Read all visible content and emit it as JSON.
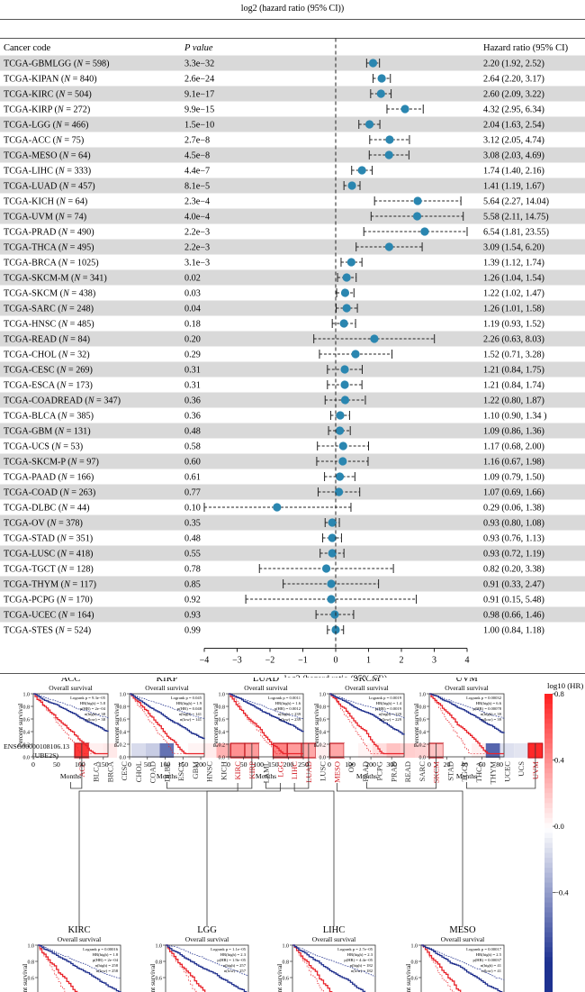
{
  "forest": {
    "top_axis_label": "log2 (hazard ratio (95% CI))",
    "xlabel": "log2 (hazard ratio (95% CI))",
    "headers": {
      "code": "Cancer code",
      "p": "P value",
      "hr": "Hazard ratio (95% CI)"
    },
    "xlim": [
      -4,
      4
    ],
    "ticks": [
      "−4",
      "−3",
      "−2",
      "−1",
      "0",
      "1",
      "2",
      "3",
      "4"
    ],
    "point_color": "#2a86b0",
    "band_color": "#d9d9d9"
  },
  "chart_data": {
    "type": "forest",
    "xlabel": "log2 (hazard ratio (95% CI))",
    "xlim": [
      -4,
      4
    ],
    "rows": [
      {
        "code": "TCGA-GBMLGG",
        "n": "598",
        "bold": true,
        "p": "3.3e−32",
        "hr": "2.20 (1.92, 2.52)"
      },
      {
        "code": "TCGA-KIPAN",
        "n": "840",
        "bold": false,
        "p": "2.6e−24",
        "hr": "2.64 (2.20, 3.17)"
      },
      {
        "code": "TCGA-KIRC",
        "n": "504",
        "bold": true,
        "p": "9.1e−17",
        "hr": "2.60 (2.09, 3.22)"
      },
      {
        "code": "TCGA-KIRP",
        "n": "272",
        "bold": false,
        "p": "9.9e−15",
        "hr": "4.32 (2.95, 6.34)"
      },
      {
        "code": "TCGA-LGG",
        "n": "466",
        "bold": true,
        "p": "1.5e−10",
        "hr": "2.04 (1.63, 2.54)"
      },
      {
        "code": "TCGA-ACC",
        "n": "75",
        "bold": false,
        "p": "2.7e−8",
        "hr": "3.12 (2.05, 4.74)"
      },
      {
        "code": "TCGA-MESO",
        "n": "64",
        "bold": true,
        "p": "4.5e−8",
        "hr": "3.08 (2.03, 4.69)"
      },
      {
        "code": "TCGA-LIHC",
        "n": "333",
        "bold": false,
        "p": "4.4e−7",
        "hr": "1.74 (1.40, 2.16)"
      },
      {
        "code": "TCGA-LUAD",
        "n": "457",
        "bold": true,
        "p": "8.1e−5",
        "hr": "1.41 (1.19, 1.67)"
      },
      {
        "code": "TCGA-KICH",
        "n": "64",
        "bold": false,
        "p": "2.3e−4",
        "hr": "5.64 (2.27, 14.04)"
      },
      {
        "code": "TCGA-UVM",
        "n": "74",
        "bold": true,
        "p": "4.0e−4",
        "hr": "5.58 (2.11, 14.75)"
      },
      {
        "code": "TCGA-PRAD",
        "n": "490",
        "bold": false,
        "p": "2.2e−3",
        "hr": "6.54 (1.81, 23.55)"
      },
      {
        "code": "TCGA-THCA",
        "n": "495",
        "bold": true,
        "p": "2.2e−3",
        "hr": "3.09 (1.54, 6.20)"
      },
      {
        "code": "TCGA-BRCA",
        "n": "1025",
        "bold": false,
        "p": "3.1e−3",
        "hr": "1.39 (1.12, 1.74)"
      },
      {
        "code": "TCGA-SKCM-M",
        "n": "341",
        "bold": true,
        "p": "0.02",
        "hr": "1.26 (1.04, 1.54)"
      },
      {
        "code": "TCGA-SKCM",
        "n": "438",
        "bold": false,
        "p": "0.03",
        "hr": "1.22 (1.02, 1.47)"
      },
      {
        "code": "TCGA-SARC",
        "n": "248",
        "bold": true,
        "p": "0.04",
        "hr": "1.26 (1.01, 1.58)"
      },
      {
        "code": "TCGA-HNSC",
        "n": "485",
        "bold": false,
        "p": "0.18",
        "hr": "1.19 (0.93, 1.52)"
      },
      {
        "code": "TCGA-READ",
        "n": "84",
        "bold": true,
        "p": "0.20",
        "hr": "2.26 (0.63, 8.03)"
      },
      {
        "code": "TCGA-CHOL",
        "n": "32",
        "bold": false,
        "p": "0.29",
        "hr": "1.52 (0.71, 3.28)"
      },
      {
        "code": "TCGA-CESC",
        "n": "269",
        "bold": true,
        "p": "0.31",
        "hr": "1.21 (0.84, 1.75)"
      },
      {
        "code": "TCGA-ESCA",
        "n": "173",
        "bold": false,
        "p": "0.31",
        "hr": "1.21 (0.84, 1.74)"
      },
      {
        "code": "TCGA-COADREAD",
        "n": "347",
        "bold": true,
        "p": "0.36",
        "hr": "1.22 (0.80, 1.87)"
      },
      {
        "code": "TCGA-BLCA",
        "n": "385",
        "bold": false,
        "p": "0.36",
        "hr": "1.10 (0.90, 1.34 )"
      },
      {
        "code": "TCGA-GBM",
        "n": "131",
        "bold": true,
        "p": "0.48",
        "hr": "1.09 (0.86, 1.36)"
      },
      {
        "code": "TCGA-UCS",
        "n": "53",
        "bold": false,
        "p": "0.58",
        "hr": "1.17 (0.68, 2.00)"
      },
      {
        "code": "TCGA-SKCM-P",
        "n": "97",
        "bold": true,
        "p": "0.60",
        "hr": "1.16 (0.67, 1.98)"
      },
      {
        "code": "TCGA-PAAD",
        "n": "166",
        "bold": false,
        "p": "0.61",
        "hr": "1.09 (0.79, 1.50)"
      },
      {
        "code": "TCGA-COAD",
        "n": "263",
        "bold": true,
        "p": "0.77",
        "hr": "1.07 (0.69, 1.66)"
      },
      {
        "code": "TCGA-DLBC",
        "n": "44",
        "bold": false,
        "p": "0.10",
        "hr": "0.29 (0.06, 1.38)"
      },
      {
        "code": "TCGA-OV",
        "n": "378",
        "bold": true,
        "p": "0.35",
        "hr": "0.93 (0.80, 1.08)"
      },
      {
        "code": "TCGA-STAD",
        "n": "351",
        "bold": false,
        "p": "0.48",
        "hr": "0.93 (0.76, 1.13)"
      },
      {
        "code": "TCGA-LUSC",
        "n": "418",
        "bold": true,
        "p": "0.55",
        "hr": "0.93 (0.72, 1.19)"
      },
      {
        "code": "TCGA-TGCT",
        "n": "128",
        "bold": false,
        "p": "0.78",
        "hr": "0.82 (0.20, 3.38)"
      },
      {
        "code": "TCGA-THYM",
        "n": "117",
        "bold": true,
        "p": "0.85",
        "hr": "0.91 (0.33, 2.47)"
      },
      {
        "code": "TCGA-PCPG",
        "n": "170",
        "bold": false,
        "p": "0.92",
        "hr": "0.91 (0.15, 5.48)"
      },
      {
        "code": "TCGA-UCEC",
        "n": "164",
        "bold": true,
        "p": "0.93",
        "hr": "0.98 (0.66, 1.46)"
      },
      {
        "code": "TCGA-STES",
        "n": "524",
        "bold": false,
        "p": "0.99",
        "hr": "1.00 (0.84, 1.18)"
      }
    ]
  },
  "heatmap": {
    "gene_line1": "ENSG00000108106.13",
    "gene_line2": "(UBE2S)",
    "legend_title": "log10 (HR)",
    "legend_ticks": [
      "0.8",
      "0.4",
      "0.0",
      "−0.4"
    ],
    "legend_range": [
      -0.8,
      0.8
    ],
    "cells": [
      {
        "label": "ACC",
        "v": 0.72,
        "sig": true
      },
      {
        "label": "BLCA",
        "v": 0.06,
        "sig": false
      },
      {
        "label": "BRCA",
        "v": 0.08,
        "sig": false
      },
      {
        "label": "CESC",
        "v": 0.0,
        "sig": false
      },
      {
        "label": "CHOL",
        "v": -0.14,
        "sig": false
      },
      {
        "label": "COAD",
        "v": -0.2,
        "sig": false
      },
      {
        "label": "DLBC",
        "v": -0.55,
        "sig": false
      },
      {
        "label": "ESCA",
        "v": 0.0,
        "sig": false
      },
      {
        "label": "GBM",
        "v": 0.04,
        "sig": false
      },
      {
        "label": "HNSC",
        "v": 0.07,
        "sig": false
      },
      {
        "label": "KICH",
        "v": 0.28,
        "sig": false
      },
      {
        "label": "KIRC",
        "v": 0.4,
        "sig": true
      },
      {
        "label": "KIRP",
        "v": 0.36,
        "sig": true
      },
      {
        "label": "LAML",
        "v": 0.0,
        "sig": false
      },
      {
        "label": "LGG",
        "v": 0.45,
        "sig": true
      },
      {
        "label": "LIHC",
        "v": 0.36,
        "sig": true
      },
      {
        "label": "LUAD",
        "v": 0.32,
        "sig": true
      },
      {
        "label": "LUSC",
        "v": 0.06,
        "sig": false
      },
      {
        "label": "MESO",
        "v": 0.32,
        "sig": true
      },
      {
        "label": "OV",
        "v": 0.0,
        "sig": false
      },
      {
        "label": "PAAD",
        "v": 0.04,
        "sig": false
      },
      {
        "label": "PCPG",
        "v": 0.12,
        "sig": false
      },
      {
        "label": "PRAD",
        "v": 0.22,
        "sig": false
      },
      {
        "label": "READ",
        "v": 0.18,
        "sig": false
      },
      {
        "label": "SARC",
        "v": 0.16,
        "sig": false
      },
      {
        "label": "SKCM",
        "v": 0.22,
        "sig": true
      },
      {
        "label": "STAD",
        "v": 0.0,
        "sig": false
      },
      {
        "label": "TGCT",
        "v": 0.0,
        "sig": false
      },
      {
        "label": "THCA",
        "v": 0.05,
        "sig": false
      },
      {
        "label": "THYM",
        "v": -0.6,
        "sig": false
      },
      {
        "label": "UCEC",
        "v": -0.12,
        "sig": false
      },
      {
        "label": "UCS",
        "v": -0.1,
        "sig": false
      },
      {
        "label": "UVM",
        "v": 0.78,
        "sig": true
      }
    ]
  },
  "km": {
    "subtitle": "Overall survival",
    "ylabel": "Percent survival",
    "xlabel": "Months",
    "y_ticks": [
      "0.0",
      "0.2",
      "0.4",
      "0.6",
      "0.8",
      "1.0"
    ],
    "high_color": "#e8232a",
    "low_color": "#1f2f8c",
    "top": [
      {
        "title": "ACC",
        "xticks": [
          "0",
          "50",
          "100",
          "150"
        ],
        "xmax": 160,
        "target": "ACC",
        "stats": [
          "Logrank p = 9.3e−05",
          "HR(high) = 5.8",
          "p(HR) = 2e−04",
          "n(high) = 38",
          "n(low) = 38"
        ]
      },
      {
        "title": "KIRP",
        "xticks": [
          "0",
          "50",
          "100",
          "150",
          "200"
        ],
        "xmax": 210,
        "target": "KIRP",
        "stats": [
          "Logrank p = 0.045",
          "HR(high) = 1.9",
          "p(HR) = 0.048",
          "n(high) = 141",
          "n(low) = 141"
        ]
      },
      {
        "title": "LUAD",
        "xticks": [
          "0",
          "50",
          "100",
          "150",
          "200",
          "250"
        ],
        "xmax": 250,
        "target": "LUAD",
        "stats": [
          "Logrank p = 0.0011",
          "HR(high) = 1.6",
          "p(HR) = 0.0012",
          "n(high) = 239",
          "n(low) = 239"
        ]
      },
      {
        "title": "SKCM",
        "xticks": [
          "0",
          "100",
          "200",
          "300"
        ],
        "xmax": 360,
        "target": "SKCM",
        "stats": [
          "Logrank p = 0.0019",
          "HR(high) = 1.4",
          "p(HR) = 0.0019",
          "n(high) = 229",
          "n(low) = 229"
        ]
      },
      {
        "title": "UVM",
        "xticks": [
          "0",
          "20",
          "40",
          "60",
          "80"
        ],
        "xmax": 85,
        "target": "UVM",
        "stats": [
          "Logrank p = 0.00032",
          "HR(high) = 6.6",
          "p(HR) = 0.00078",
          "n(high) = 39",
          "n(low) = 39"
        ]
      }
    ],
    "bottom": [
      {
        "title": "KIRC",
        "target": "KIRC",
        "stats": [
          "Logrank p = 0.00016",
          "HR(high) = 1.8",
          "p(HR) = 2e−04",
          "n(high) = 258",
          "n(low) = 258"
        ]
      },
      {
        "title": "LGG",
        "target": "LGG",
        "stats": [
          "Logrank p = 1.1e−05",
          "HR(high) = 2.3",
          "p(HR) = 1.9e−05",
          "n(high) = 257",
          "n(low) = 257"
        ]
      },
      {
        "title": "LIHC",
        "target": "LIHC",
        "stats": [
          "Logrank p = 2.7e−05",
          "HR(high) = 2.3",
          "p(HR) = 4.4e−05",
          "n(high) = 182",
          "n(low) = 182"
        ]
      },
      {
        "title": "MESO",
        "target": "MESO",
        "stats": [
          "Logrank p = 0.00017",
          "HR(high) = 2.5",
          "p(HR) = 0.00037",
          "n(high) = 41",
          "n(low) = 41"
        ]
      }
    ]
  }
}
